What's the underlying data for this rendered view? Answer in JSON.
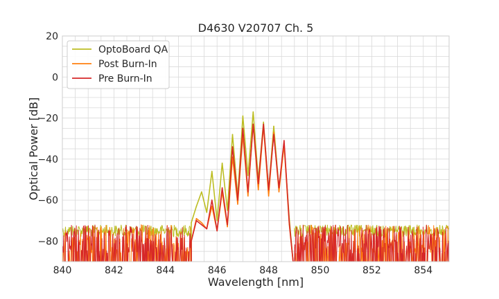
{
  "chart_data": {
    "type": "line",
    "title": "D4630 V20707 Ch. 5",
    "xlabel": "Wavelength [nm]",
    "ylabel": "Optical Power [dB]",
    "xlim": [
      840,
      855
    ],
    "ylim": [
      -90,
      20
    ],
    "xticks": [
      840,
      842,
      844,
      846,
      848,
      850,
      852,
      854
    ],
    "xtick_labels": [
      "840",
      "842",
      "844",
      "846",
      "848",
      "850",
      "852",
      "854"
    ],
    "yticks": [
      20,
      0,
      -20,
      -40,
      -60,
      -80
    ],
    "ytick_labels": [
      "20",
      "0",
      "−20",
      "−40",
      "−60",
      "−80"
    ],
    "grid": true,
    "legend_position": "upper-left",
    "series": [
      {
        "name": "OptoBoard QA",
        "color": "#bcbd22",
        "x": [
          845.0,
          845.2,
          845.4,
          845.6,
          845.8,
          846.0,
          846.2,
          846.4,
          846.6,
          846.8,
          847.0,
          847.2,
          847.4,
          847.6,
          847.8,
          848.0,
          848.2,
          848.4,
          848.6,
          848.8
        ],
        "y": [
          -71,
          -63,
          -56,
          -66,
          -46,
          -70,
          -42,
          -65,
          -28,
          -58,
          -19,
          -48,
          -17,
          -50,
          -22,
          -55,
          -24,
          -54,
          -33,
          -69
        ]
      },
      {
        "name": "Post Burn-In",
        "color": "#ff7f0e",
        "x": [
          845.0,
          845.2,
          845.4,
          845.6,
          845.8,
          846.0,
          846.2,
          846.4,
          846.6,
          846.8,
          847.0,
          847.2,
          847.4,
          847.6,
          847.8,
          848.0,
          848.2,
          848.4,
          848.6,
          848.8
        ],
        "y": [
          -80,
          -69,
          -71,
          -74,
          -63,
          -75,
          -56,
          -73,
          -39,
          -62,
          -28,
          -58,
          -23,
          -55,
          -24,
          -58,
          -27,
          -56,
          -33,
          -72
        ]
      },
      {
        "name": "Pre Burn-In",
        "color": "#d62728",
        "x": [
          845.0,
          845.2,
          845.4,
          845.6,
          845.8,
          846.0,
          846.2,
          846.4,
          846.6,
          846.8,
          847.0,
          847.2,
          847.4,
          847.6,
          847.8,
          848.0,
          848.2,
          848.4,
          848.6,
          848.8
        ],
        "y": [
          -80,
          -70,
          -72,
          -74,
          -60,
          -75,
          -54,
          -72,
          -34,
          -60,
          -25,
          -56,
          -23,
          -52,
          -23,
          -55,
          -28,
          -54,
          -31,
          -71
        ]
      }
    ]
  }
}
